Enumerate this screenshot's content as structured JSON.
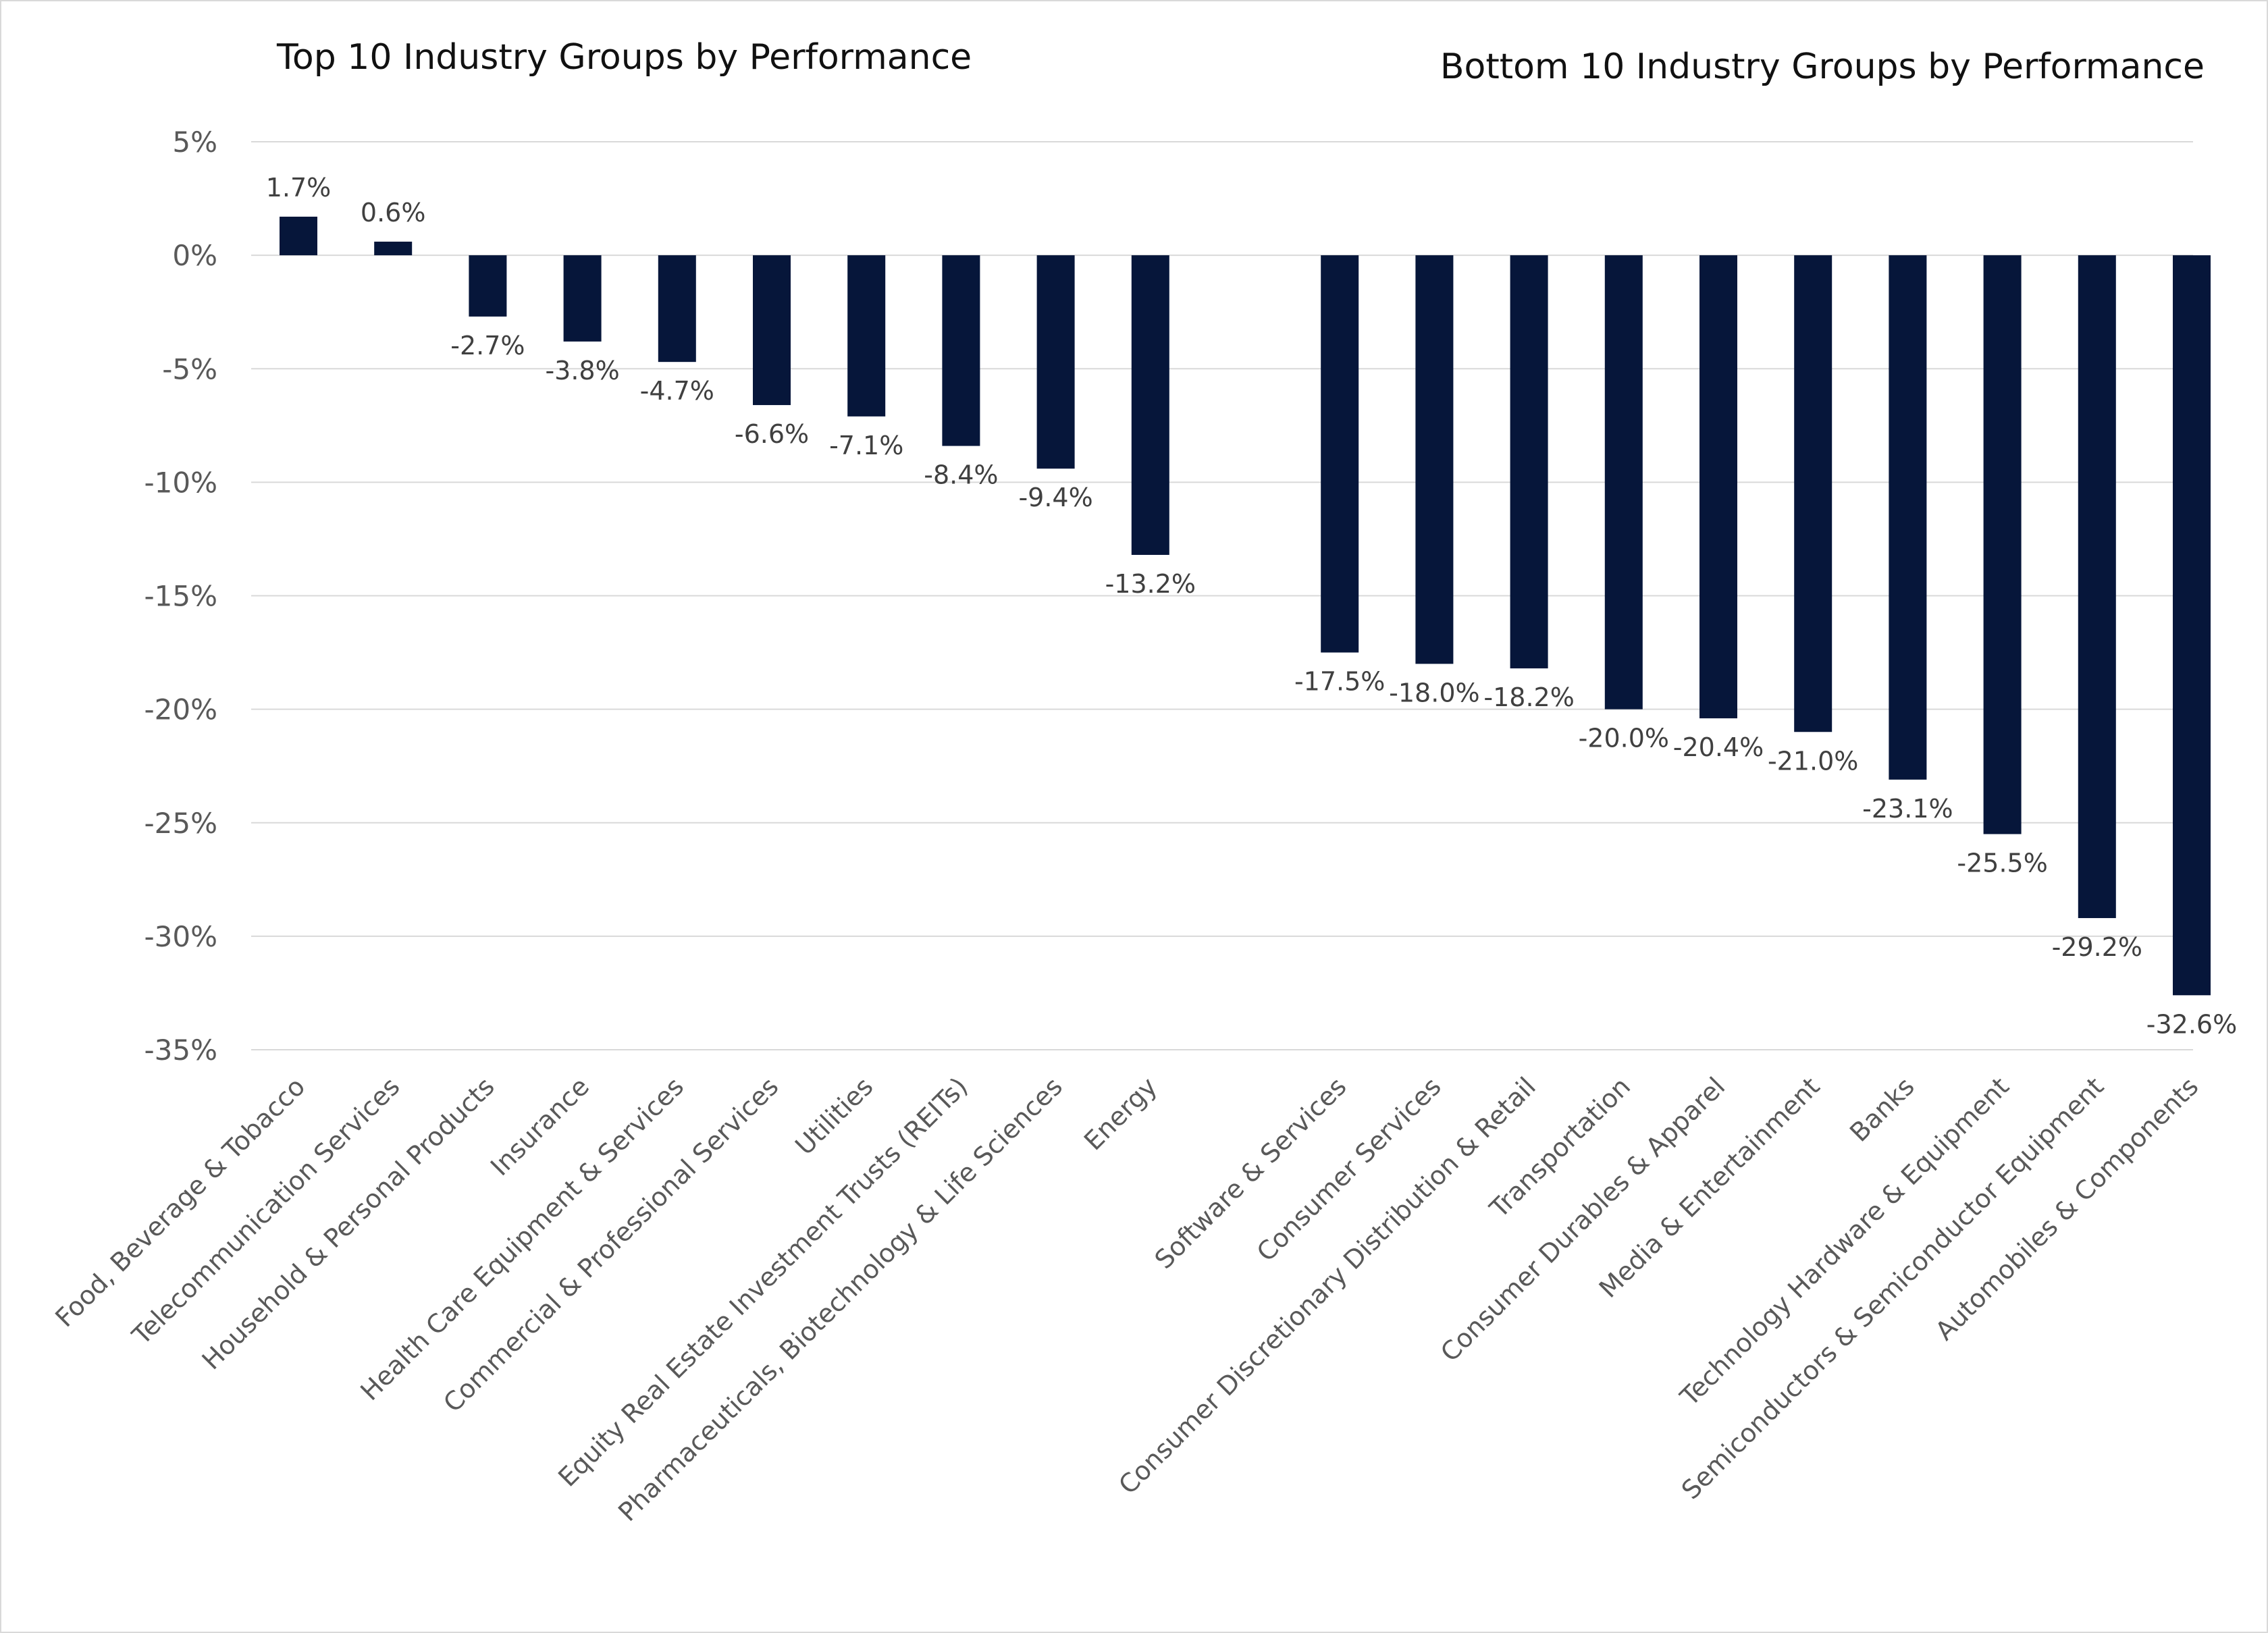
{
  "chart_data": [
    {
      "type": "bar",
      "title": "Top 10 Industry Groups by Performance",
      "series": [
        {
          "name": "Performance",
          "color": "#06163a",
          "categories": [
            "Food, Beverage & Tobacco",
            "Telecommunication Services",
            "Household & Personal Products",
            "Insurance",
            "Health Care Equipment & Services",
            "Commercial & Professional Services",
            "Utilities",
            "Equity Real Estate Investment Trusts (REITs)",
            "Pharmaceuticals, Biotechnology & Life Sciences",
            "Energy"
          ],
          "values": [
            1.7,
            0.6,
            -2.7,
            -3.8,
            -4.7,
            -6.6,
            -7.1,
            -8.4,
            -9.4,
            -13.2
          ],
          "labels": [
            "1.7%",
            "0.6%",
            "-2.7%",
            "-3.8%",
            "-4.7%",
            "-6.6%",
            "-7.1%",
            "-8.4%",
            "-9.4%",
            "-13.2%"
          ]
        }
      ]
    },
    {
      "type": "bar",
      "title": "Bottom 10 Industry Groups by Performance",
      "series": [
        {
          "name": "Performance",
          "color": "#06163a",
          "categories": [
            "Software & Services",
            "Consumer Services",
            "Consumer Discretionary Distribution & Retail",
            "Transportation",
            "Consumer Durables & Apparel",
            "Media & Entertainment",
            "Banks",
            "Technology Hardware & Equipment",
            "Semiconductors & Semiconductor Equipment",
            "Automobiles & Components"
          ],
          "values": [
            -17.5,
            -18.0,
            -18.2,
            -20.0,
            -20.4,
            -21.0,
            -23.1,
            -25.5,
            -29.2,
            -32.6
          ],
          "labels": [
            "-17.5%",
            "-18.0%",
            "-18.2%",
            "-20.0%",
            "-20.4%",
            "-21.0%",
            "-23.1%",
            "-25.5%",
            "-29.2%",
            "-32.6%"
          ]
        }
      ]
    }
  ],
  "axis": {
    "ylim": [
      -35,
      5
    ],
    "yticks": [
      5,
      0,
      -5,
      -10,
      -15,
      -20,
      -25,
      -30,
      -35
    ],
    "ytick_labels": [
      "5%",
      "0%",
      "-5%",
      "-10%",
      "-15%",
      "-20%",
      "-25%",
      "-30%",
      "-35%"
    ],
    "grid": true
  }
}
